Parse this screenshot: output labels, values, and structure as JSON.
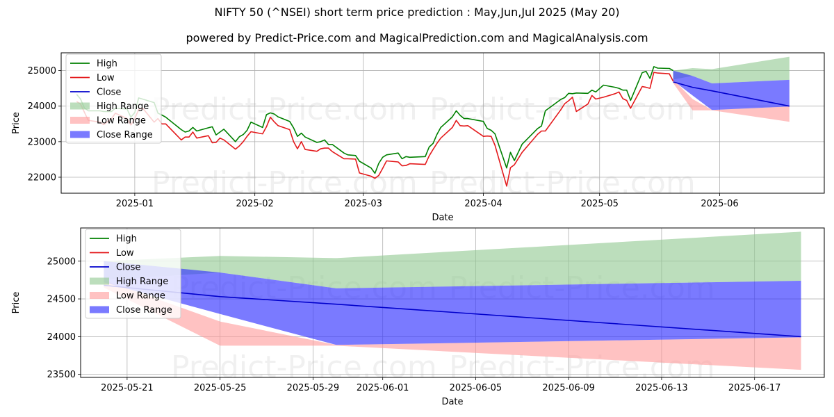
{
  "title": "NIFTY 50 (^NSEI) short term price prediction : May,Jun,Jul 2025 (May 20)",
  "subtitle": "powered by Predict-Price.com and MagicalPrediction.com and MagicalAnalysis.com",
  "watermark": "Predict-Price.com",
  "colors": {
    "high": "#008000",
    "low": "#e41a1c",
    "close": "#0000cc",
    "high_range": "#90c890",
    "low_range": "#ff9999",
    "close_range": "#3333ff"
  },
  "legend": [
    "High",
    "Low",
    "Close",
    "High Range",
    "Low Range",
    "Close Range"
  ],
  "chart_data": [
    {
      "type": "line",
      "xlabel": "Date",
      "ylabel": "Price",
      "x_ticks": [
        "2025-01",
        "2025-02",
        "2025-03",
        "2025-04",
        "2025-05",
        "2025-06"
      ],
      "y_ticks": [
        "22000",
        "23000",
        "24000",
        "25000"
      ],
      "xlim": [
        "2024-12-13",
        "2025-06-28"
      ],
      "ylim": [
        21550,
        25500
      ],
      "grid": true,
      "legend_position": "top-left",
      "series": [
        {
          "name": "High",
          "points": [
            [
              "2024-12-17",
              24330
            ],
            [
              "2024-12-18",
              24200
            ],
            [
              "2024-12-19",
              23950
            ],
            [
              "2024-12-20",
              23870
            ],
            [
              "2024-12-23",
              23870
            ],
            [
              "2024-12-24",
              23850
            ],
            [
              "2024-12-26",
              23850
            ],
            [
              "2024-12-27",
              23940
            ],
            [
              "2024-12-30",
              23920
            ],
            [
              "2024-12-31",
              23690
            ],
            [
              "2025-01-01",
              23820
            ],
            [
              "2025-01-02",
              24230
            ],
            [
              "2025-01-03",
              24200
            ],
            [
              "2025-01-06",
              24100
            ],
            [
              "2025-01-07",
              23800
            ],
            [
              "2025-01-08",
              23750
            ],
            [
              "2025-01-09",
              23690
            ],
            [
              "2025-01-13",
              23340
            ],
            [
              "2025-01-14",
              23270
            ],
            [
              "2025-01-15",
              23300
            ],
            [
              "2025-01-16",
              23400
            ],
            [
              "2025-01-17",
              23300
            ],
            [
              "2025-01-20",
              23390
            ],
            [
              "2025-01-21",
              23420
            ],
            [
              "2025-01-22",
              23190
            ],
            [
              "2025-01-23",
              23270
            ],
            [
              "2025-01-24",
              23350
            ],
            [
              "2025-01-27",
              23000
            ],
            [
              "2025-01-28",
              23140
            ],
            [
              "2025-01-29",
              23200
            ],
            [
              "2025-01-30",
              23320
            ],
            [
              "2025-01-31",
              23550
            ],
            [
              "2025-02-03",
              23400
            ],
            [
              "2025-02-04",
              23760
            ],
            [
              "2025-02-05",
              23810
            ],
            [
              "2025-02-06",
              23780
            ],
            [
              "2025-02-07",
              23700
            ],
            [
              "2025-02-10",
              23570
            ],
            [
              "2025-02-11",
              23390
            ],
            [
              "2025-02-12",
              23150
            ],
            [
              "2025-02-13",
              23240
            ],
            [
              "2025-02-14",
              23130
            ],
            [
              "2025-02-17",
              22980
            ],
            [
              "2025-02-18",
              23000
            ],
            [
              "2025-02-19",
              23050
            ],
            [
              "2025-02-20",
              22920
            ],
            [
              "2025-02-21",
              22920
            ],
            [
              "2025-02-24",
              22680
            ],
            [
              "2025-02-25",
              22630
            ],
            [
              "2025-02-27",
              22610
            ],
            [
              "2025-02-28",
              22450
            ],
            [
              "2025-03-03",
              22260
            ],
            [
              "2025-03-04",
              22110
            ],
            [
              "2025-03-05",
              22390
            ],
            [
              "2025-03-06",
              22560
            ],
            [
              "2025-03-07",
              22630
            ],
            [
              "2025-03-10",
              22680
            ],
            [
              "2025-03-11",
              22520
            ],
            [
              "2025-03-12",
              22580
            ],
            [
              "2025-03-13",
              22560
            ],
            [
              "2025-03-17",
              22580
            ],
            [
              "2025-03-18",
              22850
            ],
            [
              "2025-03-19",
              22950
            ],
            [
              "2025-03-20",
              23200
            ],
            [
              "2025-03-21",
              23400
            ],
            [
              "2025-03-24",
              23700
            ],
            [
              "2025-03-25",
              23870
            ],
            [
              "2025-03-26",
              23740
            ],
            [
              "2025-03-27",
              23650
            ],
            [
              "2025-03-28",
              23650
            ],
            [
              "2025-04-01",
              23570
            ],
            [
              "2025-04-02",
              23370
            ],
            [
              "2025-04-03",
              23320
            ],
            [
              "2025-04-04",
              23220
            ],
            [
              "2025-04-07",
              22260
            ],
            [
              "2025-04-08",
              22700
            ],
            [
              "2025-04-09",
              22470
            ],
            [
              "2025-04-11",
              22930
            ],
            [
              "2025-04-15",
              23370
            ],
            [
              "2025-04-16",
              23440
            ],
            [
              "2025-04-17",
              23870
            ],
            [
              "2025-04-21",
              24190
            ],
            [
              "2025-04-22",
              24240
            ],
            [
              "2025-04-23",
              24360
            ],
            [
              "2025-04-24",
              24350
            ],
            [
              "2025-04-25",
              24370
            ],
            [
              "2025-04-28",
              24360
            ],
            [
              "2025-04-29",
              24450
            ],
            [
              "2025-04-30",
              24400
            ],
            [
              "2025-05-02",
              24590
            ],
            [
              "2025-05-05",
              24530
            ],
            [
              "2025-05-06",
              24500
            ],
            [
              "2025-05-07",
              24450
            ],
            [
              "2025-05-08",
              24450
            ],
            [
              "2025-05-09",
              24160
            ],
            [
              "2025-05-12",
              24940
            ],
            [
              "2025-05-13",
              24980
            ],
            [
              "2025-05-14",
              24780
            ],
            [
              "2025-05-15",
              25110
            ],
            [
              "2025-05-16",
              25070
            ],
            [
              "2025-05-19",
              25060
            ],
            [
              "2025-05-20",
              25000
            ]
          ]
        },
        {
          "name": "Low",
          "points": [
            [
              "2024-12-17",
              24130
            ],
            [
              "2024-12-18",
              24060
            ],
            [
              "2024-12-19",
              23830
            ],
            [
              "2024-12-20",
              23600
            ],
            [
              "2024-12-23",
              23550
            ],
            [
              "2024-12-24",
              23480
            ],
            [
              "2024-12-26",
              23650
            ],
            [
              "2024-12-27",
              23800
            ],
            [
              "2024-12-30",
              23650
            ],
            [
              "2024-12-31",
              23470
            ],
            [
              "2025-01-01",
              23650
            ],
            [
              "2025-01-02",
              23900
            ],
            [
              "2025-01-03",
              23950
            ],
            [
              "2025-01-06",
              23550
            ],
            [
              "2025-01-07",
              23650
            ],
            [
              "2025-01-08",
              23500
            ],
            [
              "2025-01-09",
              23500
            ],
            [
              "2025-01-13",
              23050
            ],
            [
              "2025-01-14",
              23130
            ],
            [
              "2025-01-15",
              23130
            ],
            [
              "2025-01-16",
              23270
            ],
            [
              "2025-01-17",
              23100
            ],
            [
              "2025-01-20",
              23170
            ],
            [
              "2025-01-21",
              22970
            ],
            [
              "2025-01-22",
              22980
            ],
            [
              "2025-01-23",
              23100
            ],
            [
              "2025-01-24",
              23050
            ],
            [
              "2025-01-27",
              22790
            ],
            [
              "2025-01-28",
              22880
            ],
            [
              "2025-01-29",
              23000
            ],
            [
              "2025-01-30",
              23150
            ],
            [
              "2025-01-31",
              23280
            ],
            [
              "2025-02-03",
              23220
            ],
            [
              "2025-02-04",
              23420
            ],
            [
              "2025-02-05",
              23690
            ],
            [
              "2025-02-06",
              23560
            ],
            [
              "2025-02-07",
              23450
            ],
            [
              "2025-02-10",
              23340
            ],
            [
              "2025-02-11",
              23000
            ],
            [
              "2025-02-12",
              22800
            ],
            [
              "2025-02-13",
              23000
            ],
            [
              "2025-02-14",
              22780
            ],
            [
              "2025-02-17",
              22730
            ],
            [
              "2025-02-18",
              22800
            ],
            [
              "2025-02-19",
              22820
            ],
            [
              "2025-02-20",
              22820
            ],
            [
              "2025-02-21",
              22720
            ],
            [
              "2025-02-24",
              22520
            ],
            [
              "2025-02-25",
              22520
            ],
            [
              "2025-02-27",
              22510
            ],
            [
              "2025-02-28",
              22120
            ],
            [
              "2025-03-03",
              22030
            ],
            [
              "2025-03-04",
              21970
            ],
            [
              "2025-03-05",
              22050
            ],
            [
              "2025-03-06",
              22250
            ],
            [
              "2025-03-07",
              22460
            ],
            [
              "2025-03-10",
              22430
            ],
            [
              "2025-03-11",
              22320
            ],
            [
              "2025-03-12",
              22330
            ],
            [
              "2025-03-13",
              22380
            ],
            [
              "2025-03-17",
              22360
            ],
            [
              "2025-03-18",
              22600
            ],
            [
              "2025-03-19",
              22780
            ],
            [
              "2025-03-20",
              22950
            ],
            [
              "2025-03-21",
              23100
            ],
            [
              "2025-03-24",
              23400
            ],
            [
              "2025-03-25",
              23600
            ],
            [
              "2025-03-26",
              23450
            ],
            [
              "2025-03-27",
              23440
            ],
            [
              "2025-03-28",
              23450
            ],
            [
              "2025-04-01",
              23150
            ],
            [
              "2025-04-02",
              23160
            ],
            [
              "2025-04-03",
              23150
            ],
            [
              "2025-04-04",
              22900
            ],
            [
              "2025-04-07",
              21750
            ],
            [
              "2025-04-08",
              22270
            ],
            [
              "2025-04-09",
              22350
            ],
            [
              "2025-04-11",
              22700
            ],
            [
              "2025-04-15",
              23210
            ],
            [
              "2025-04-16",
              23300
            ],
            [
              "2025-04-17",
              23300
            ],
            [
              "2025-04-21",
              23900
            ],
            [
              "2025-04-22",
              24070
            ],
            [
              "2025-04-23",
              24150
            ],
            [
              "2025-04-24",
              24250
            ],
            [
              "2025-04-25",
              23850
            ],
            [
              "2025-04-28",
              24060
            ],
            [
              "2025-04-29",
              24300
            ],
            [
              "2025-04-30",
              24200
            ],
            [
              "2025-05-02",
              24250
            ],
            [
              "2025-05-05",
              24350
            ],
            [
              "2025-05-06",
              24400
            ],
            [
              "2025-05-07",
              24210
            ],
            [
              "2025-05-08",
              24160
            ],
            [
              "2025-05-09",
              23940
            ],
            [
              "2025-05-12",
              24550
            ],
            [
              "2025-05-13",
              24530
            ],
            [
              "2025-05-14",
              24500
            ],
            [
              "2025-05-15",
              24950
            ],
            [
              "2025-05-16",
              24930
            ],
            [
              "2025-05-19",
              24910
            ],
            [
              "2025-05-20",
              24700
            ]
          ]
        }
      ],
      "forecast": {
        "x": [
          "2025-05-20",
          "2025-05-25",
          "2025-05-30",
          "2025-06-19"
        ],
        "high_range": {
          "lower": [
            24750,
            24850,
            24640,
            24740
          ],
          "upper": [
            25000,
            25070,
            25040,
            25390
          ]
        },
        "low_range": {
          "lower": [
            24650,
            23880,
            23880,
            23560
          ],
          "upper": [
            24750,
            24200,
            23890,
            23990
          ]
        },
        "close_range": {
          "lower": [
            24720,
            24300,
            23890,
            23990
          ],
          "upper": [
            25000,
            24850,
            24640,
            24740
          ]
        },
        "close": [
          24680,
          24530,
          24430,
          24000
        ]
      }
    },
    {
      "type": "line",
      "xlabel": "Date",
      "ylabel": "Price",
      "x_ticks": [
        "2025-05-21",
        "2025-05-25",
        "2025-05-29",
        "2025-06-01",
        "2025-06-05",
        "2025-06-09",
        "2025-06-13",
        "2025-06-17"
      ],
      "y_ticks": [
        "23500",
        "24000",
        "24500",
        "25000"
      ],
      "xlim": [
        "2025-05-19",
        "2025-06-20"
      ],
      "ylim": [
        23460,
        25440
      ],
      "grid": true,
      "legend_position": "top-left",
      "forecast": {
        "x": [
          "2025-05-20",
          "2025-05-25",
          "2025-05-30",
          "2025-06-19"
        ],
        "high_range": {
          "lower": [
            24750,
            24850,
            24640,
            24740
          ],
          "upper": [
            25000,
            25070,
            25040,
            25390
          ]
        },
        "low_range": {
          "lower": [
            24650,
            23880,
            23880,
            23560
          ],
          "upper": [
            24750,
            24200,
            23890,
            23990
          ]
        },
        "close_range": {
          "lower": [
            24720,
            24300,
            23890,
            23990
          ],
          "upper": [
            25000,
            24850,
            24640,
            24740
          ]
        },
        "close": [
          24680,
          24530,
          24430,
          24000
        ]
      }
    }
  ]
}
